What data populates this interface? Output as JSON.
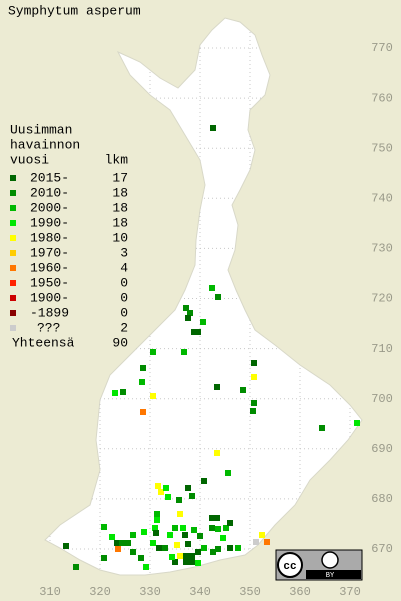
{
  "title": "Symphytum asperum",
  "legend": {
    "heading": [
      "Uusimman",
      "havainnon",
      "vuosi"
    ],
    "count_heading": "lkm",
    "rows": [
      {
        "label": "2015-",
        "count": 17,
        "color": "#006600"
      },
      {
        "label": "2010-",
        "count": 18,
        "color": "#008c00"
      },
      {
        "label": "2000-",
        "count": 18,
        "color": "#00b800"
      },
      {
        "label": "1990-",
        "count": 18,
        "color": "#00e600"
      },
      {
        "label": "1980-",
        "count": 10,
        "color": "#ffff00"
      },
      {
        "label": "1970-",
        "count": 3,
        "color": "#ffcc00"
      },
      {
        "label": "1960-",
        "count": 4,
        "color": "#ff7700"
      },
      {
        "label": "1950-",
        "count": 0,
        "color": "#ff2200"
      },
      {
        "label": "1900-",
        "count": 0,
        "color": "#cc0000"
      },
      {
        "label": "-1899",
        "count": 0,
        "color": "#880000"
      },
      {
        "label": "???",
        "count": 2,
        "color": "#cccccc"
      }
    ],
    "total_label": "Yhteensä",
    "total": 90
  },
  "axes": {
    "x_labels": [
      310,
      320,
      330,
      340,
      350,
      360,
      370
    ],
    "y_labels": [
      670,
      680,
      690,
      700,
      710,
      720,
      730,
      740,
      750,
      760,
      770
    ]
  },
  "license": {
    "icon": "cc",
    "text": "BY"
  }
}
